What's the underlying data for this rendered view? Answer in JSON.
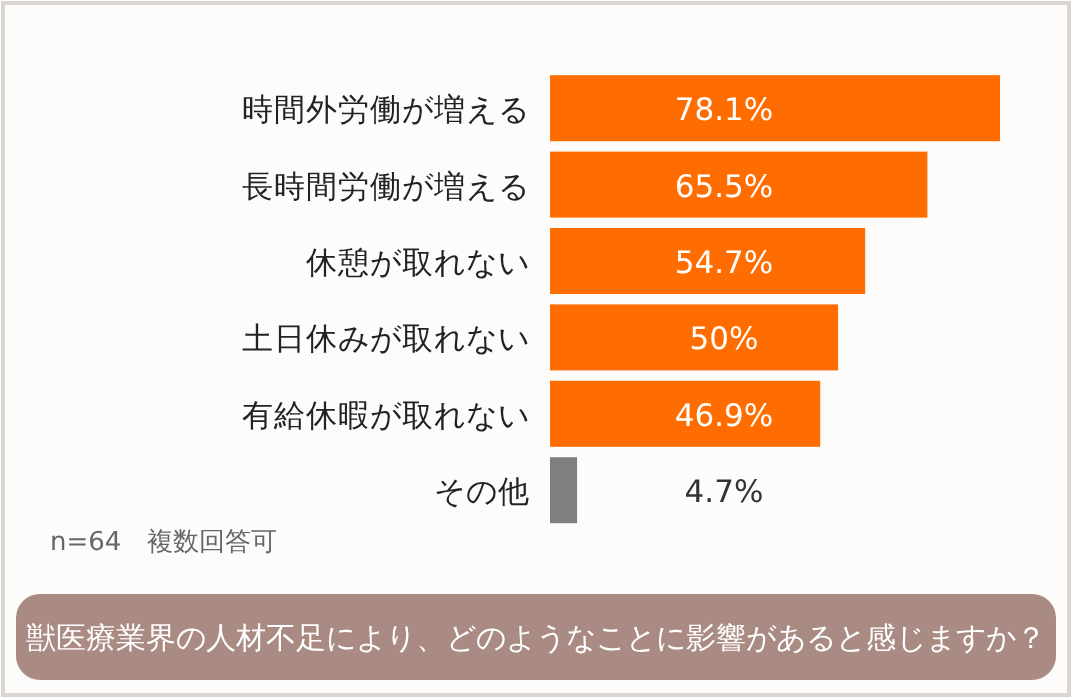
{
  "chart_data": {
    "type": "bar",
    "orientation": "horizontal",
    "title": "獣医療業界の人材不足により、どのようなことに影響があると感じますか？",
    "annotations": [
      "n=64　複数回答可"
    ],
    "categories": [
      "時間外労働が増える",
      "長時間労働が増える",
      "休憩が取れない",
      "土日休みが取れない",
      "有給休暇が取れない",
      "その他"
    ],
    "values": [
      78.1,
      65.5,
      54.7,
      50,
      46.9,
      4.7
    ],
    "colors": [
      "#ff6d00",
      "#ff6d00",
      "#ff6d00",
      "#ff6d00",
      "#ff6d00",
      "#7f7f7f"
    ],
    "value_labels": [
      "78.1%",
      "65.5%",
      "54.7%",
      "50%",
      "46.9%",
      "4.7%"
    ]
  }
}
